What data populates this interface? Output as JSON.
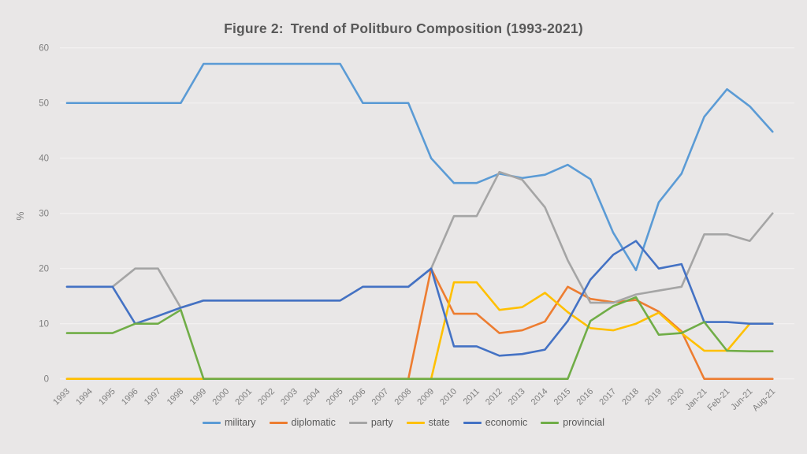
{
  "figure": {
    "title_prefix": "Figure 2:",
    "title_main": "Trend of Politburo Composition (1993-2021)",
    "background_color": "#e9e7e7",
    "gridline_color": "#f2f0f0",
    "axis_label_color": "#7f7f7f",
    "title_color": "#595959"
  },
  "chart_data": {
    "type": "line",
    "title": "Figure 2: Trend of Politburo Composition (1993-2021)",
    "xlabel": "",
    "ylabel": "%",
    "ylim": [
      0,
      60
    ],
    "yticks": [
      0,
      10,
      20,
      30,
      40,
      50,
      60
    ],
    "grid": true,
    "legend_position": "bottom",
    "categories": [
      "1993",
      "1994",
      "1995",
      "1996",
      "1997",
      "1998",
      "1999",
      "2000",
      "2001",
      "2002",
      "2003",
      "2004",
      "2005",
      "2006",
      "2007",
      "2008",
      "2009",
      "2010",
      "2011",
      "2012",
      "2013",
      "2014",
      "2015",
      "2016",
      "2017",
      "2018",
      "2019",
      "2020",
      "Jan-21",
      "Feb-21",
      "Jun-21",
      "Aug-21"
    ],
    "series": [
      {
        "name": "military",
        "color": "#5B9BD5",
        "values": [
          50,
          50,
          50,
          50,
          50,
          50,
          57.1,
          57.1,
          57.1,
          57.1,
          57.1,
          57.1,
          57.1,
          50,
          50,
          50,
          40,
          35.5,
          35.5,
          37.2,
          36.4,
          37,
          38.8,
          36.2,
          26.5,
          19.7,
          32,
          37.2,
          47.5,
          52.5,
          49.4,
          44.8
        ]
      },
      {
        "name": "diplomatic",
        "color": "#ED7D31",
        "values": [
          0,
          0,
          0,
          0,
          0,
          0,
          0,
          0,
          0,
          0,
          0,
          0,
          0,
          0,
          0,
          0,
          20,
          11.8,
          11.8,
          8.3,
          8.8,
          10.4,
          16.7,
          14.5,
          13.9,
          14.3,
          12.2,
          8.6,
          0,
          0,
          0,
          0
        ]
      },
      {
        "name": "party",
        "color": "#A5A5A5",
        "values": [
          16.7,
          16.7,
          16.7,
          20,
          20,
          12.9,
          14.2,
          14.2,
          14.2,
          14.2,
          14.2,
          14.2,
          14.2,
          16.7,
          16.7,
          16.7,
          20,
          29.5,
          29.5,
          37.5,
          36.1,
          31.1,
          21.5,
          13.8,
          13.8,
          15.3,
          16,
          16.7,
          26.2,
          26.2,
          25,
          30
        ]
      },
      {
        "name": "state",
        "color": "#FFC000",
        "values": [
          0,
          0,
          0,
          0,
          0,
          0,
          0,
          0,
          0,
          0,
          0,
          0,
          0,
          0,
          0,
          0,
          0,
          17.5,
          17.5,
          12.5,
          13,
          15.6,
          12.1,
          9.2,
          8.8,
          10,
          12,
          8.3,
          5.1,
          5.1,
          10,
          10
        ]
      },
      {
        "name": "economic",
        "color": "#4472C4",
        "values": [
          16.7,
          16.7,
          16.7,
          10,
          11.4,
          12.9,
          14.2,
          14.2,
          14.2,
          14.2,
          14.2,
          14.2,
          14.2,
          16.7,
          16.7,
          16.7,
          20,
          5.9,
          5.9,
          4.2,
          4.5,
          5.3,
          10.5,
          18,
          22.5,
          25,
          20,
          20.8,
          10.3,
          10.3,
          10,
          10
        ]
      },
      {
        "name": "provincial",
        "color": "#70AD47",
        "values": [
          8.3,
          8.3,
          8.3,
          10,
          10,
          12.5,
          0,
          0,
          0,
          0,
          0,
          0,
          0,
          0,
          0,
          0,
          0,
          0,
          0,
          0,
          0,
          0,
          0,
          10.5,
          13.2,
          14.8,
          8,
          8.3,
          10.3,
          5.1,
          5,
          5
        ]
      }
    ]
  }
}
